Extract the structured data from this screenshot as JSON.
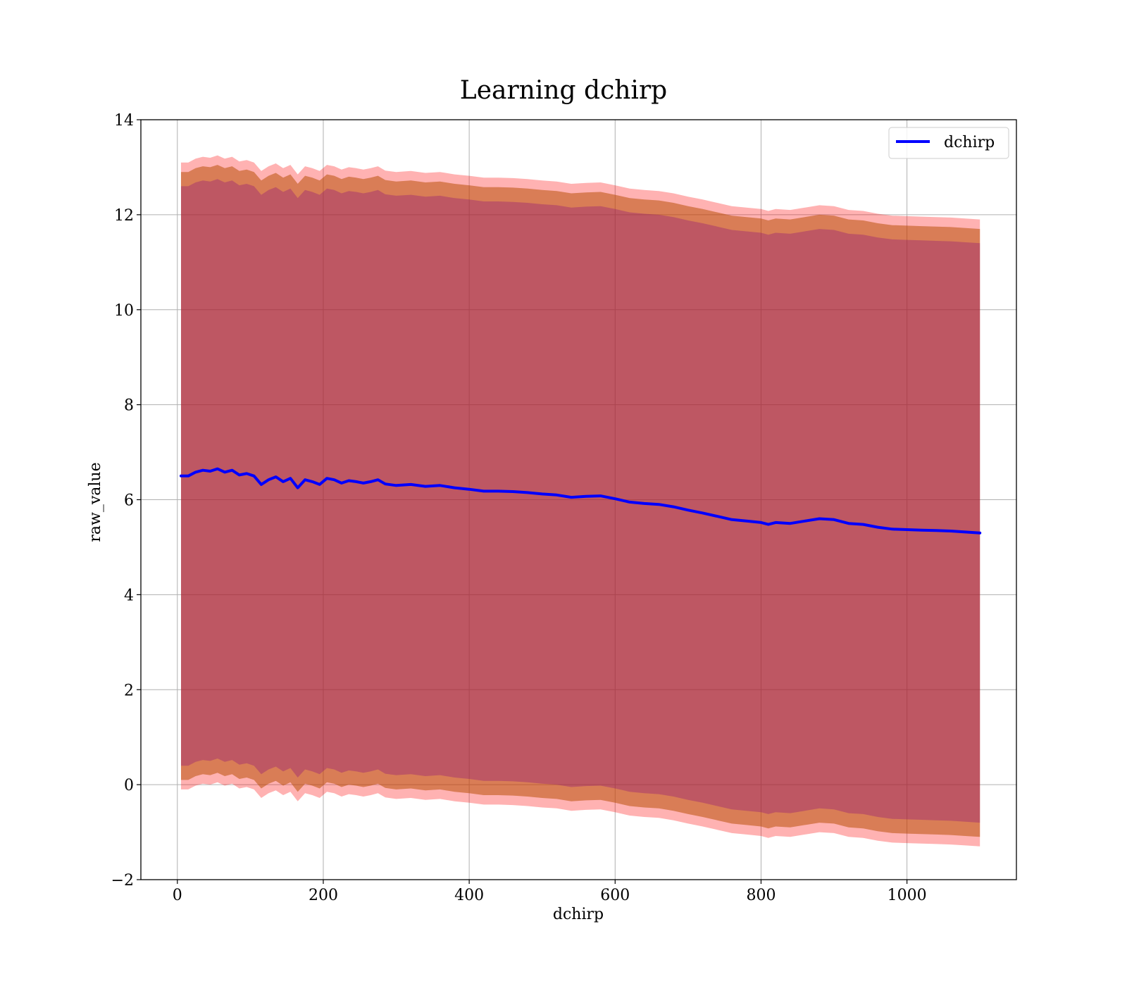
{
  "chart_data": {
    "type": "line",
    "title": "Learning dchirp",
    "xlabel": "dchirp",
    "ylabel": "raw_value",
    "xlim": [
      -50,
      1150
    ],
    "ylim": [
      -2,
      14
    ],
    "x_ticks": [
      0,
      200,
      400,
      600,
      800,
      1000
    ],
    "y_ticks": [
      -2,
      0,
      2,
      4,
      6,
      8,
      10,
      12,
      14
    ],
    "y_tick_labels": [
      "−2",
      "0",
      "2",
      "4",
      "6",
      "8",
      "10",
      "12",
      "14"
    ],
    "grid": true,
    "legend": {
      "position": "top-right",
      "entries": [
        "dchirp"
      ]
    },
    "series": [
      {
        "name": "dchirp",
        "color": "#0000ff",
        "x": [
          5,
          15,
          25,
          35,
          45,
          55,
          65,
          75,
          85,
          95,
          105,
          115,
          125,
          135,
          145,
          155,
          165,
          175,
          185,
          195,
          205,
          215,
          225,
          235,
          245,
          255,
          265,
          275,
          285,
          300,
          320,
          340,
          360,
          380,
          400,
          420,
          440,
          460,
          480,
          500,
          520,
          540,
          560,
          580,
          600,
          620,
          640,
          660,
          680,
          700,
          720,
          740,
          760,
          780,
          800,
          810,
          820,
          840,
          860,
          880,
          900,
          920,
          940,
          960,
          980,
          1000,
          1020,
          1040,
          1060,
          1080,
          1100
        ],
        "values": [
          6.5,
          6.5,
          6.58,
          6.62,
          6.6,
          6.65,
          6.58,
          6.62,
          6.52,
          6.55,
          6.5,
          6.32,
          6.42,
          6.48,
          6.38,
          6.45,
          6.25,
          6.42,
          6.38,
          6.32,
          6.45,
          6.42,
          6.35,
          6.4,
          6.38,
          6.35,
          6.38,
          6.42,
          6.33,
          6.3,
          6.32,
          6.28,
          6.3,
          6.25,
          6.22,
          6.18,
          6.18,
          6.17,
          6.15,
          6.12,
          6.1,
          6.05,
          6.07,
          6.08,
          6.02,
          5.95,
          5.92,
          5.9,
          5.85,
          5.78,
          5.72,
          5.65,
          5.58,
          5.55,
          5.52,
          5.48,
          5.52,
          5.5,
          5.55,
          5.6,
          5.58,
          5.5,
          5.48,
          5.42,
          5.38,
          5.37,
          5.36,
          5.35,
          5.34,
          5.32,
          5.3
        ]
      }
    ],
    "bands": [
      {
        "color": "#ff0000",
        "opacity": 0.3,
        "half_width": 6.6
      },
      {
        "color": "#ff0000",
        "opacity": 0.3,
        "half_width": 6.4
      },
      {
        "color": "#808000",
        "opacity": 0.3,
        "half_width": 6.4
      },
      {
        "color": "#800080",
        "opacity": 0.3,
        "half_width": 6.1
      }
    ]
  }
}
